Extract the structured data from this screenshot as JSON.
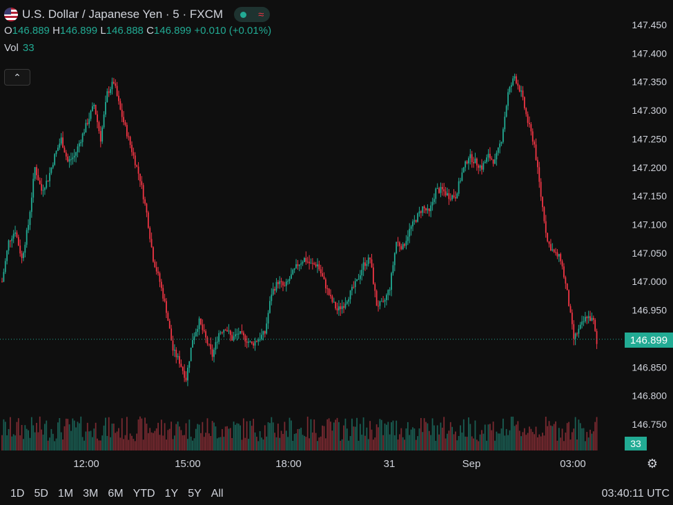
{
  "header": {
    "title": "U.S. Dollar / Japanese Yen · 5 · FXCM",
    "ohlc": {
      "o_label": "O",
      "o_value": "146.889",
      "h_label": "H",
      "h_value": "146.899",
      "l_label": "L",
      "l_value": "146.888",
      "c_label": "C",
      "c_value": "146.899",
      "change": "+0.010 (+0.01%)"
    },
    "vol_label": "Vol",
    "vol_value": "33",
    "collapse_icon": "chevron-up-icon"
  },
  "price_axis": {
    "labels": [
      "147.450",
      "147.400",
      "147.350",
      "147.300",
      "147.250",
      "147.200",
      "147.150",
      "147.100",
      "147.050",
      "147.000",
      "146.950",
      "146.899",
      "146.850",
      "146.800",
      "146.750"
    ],
    "current_price": "146.899",
    "current_volume": "33"
  },
  "time_axis": {
    "labels": [
      "12:00",
      "15:00",
      "18:00",
      "31",
      "Sep",
      "03:00"
    ]
  },
  "range_buttons": [
    "1D",
    "5D",
    "1M",
    "3M",
    "6M",
    "YTD",
    "1Y",
    "5Y",
    "All"
  ],
  "clock": "03:40:11 UTC",
  "colors": {
    "background": "#0f0f0f",
    "up": "#22ab94",
    "down": "#f23645",
    "text": "#d1d4dc"
  },
  "chart_data": {
    "type": "candlestick",
    "symbol": "USDJPY",
    "interval": "5",
    "ylim": [
      146.72,
      147.47
    ],
    "x_ticks": [
      "12:00",
      "15:00",
      "18:00",
      "31",
      "Sep",
      "03:00"
    ],
    "close_path": [
      {
        "i": 0,
        "v": 147.0
      },
      {
        "i": 4,
        "v": 147.07
      },
      {
        "i": 8,
        "v": 147.09
      },
      {
        "i": 12,
        "v": 147.04
      },
      {
        "i": 16,
        "v": 147.1
      },
      {
        "i": 20,
        "v": 147.2
      },
      {
        "i": 24,
        "v": 147.16
      },
      {
        "i": 28,
        "v": 147.18
      },
      {
        "i": 32,
        "v": 147.22
      },
      {
        "i": 36,
        "v": 147.25
      },
      {
        "i": 40,
        "v": 147.21
      },
      {
        "i": 44,
        "v": 147.22
      },
      {
        "i": 48,
        "v": 147.25
      },
      {
        "i": 52,
        "v": 147.28
      },
      {
        "i": 56,
        "v": 147.31
      },
      {
        "i": 60,
        "v": 147.25
      },
      {
        "i": 64,
        "v": 147.33
      },
      {
        "i": 68,
        "v": 147.35
      },
      {
        "i": 72,
        "v": 147.3
      },
      {
        "i": 76,
        "v": 147.26
      },
      {
        "i": 80,
        "v": 147.22
      },
      {
        "i": 84,
        "v": 147.18
      },
      {
        "i": 88,
        "v": 147.12
      },
      {
        "i": 92,
        "v": 147.04
      },
      {
        "i": 96,
        "v": 147.0
      },
      {
        "i": 100,
        "v": 146.95
      },
      {
        "i": 104,
        "v": 146.88
      },
      {
        "i": 108,
        "v": 146.86
      },
      {
        "i": 112,
        "v": 146.83
      },
      {
        "i": 116,
        "v": 146.9
      },
      {
        "i": 120,
        "v": 146.93
      },
      {
        "i": 124,
        "v": 146.9
      },
      {
        "i": 128,
        "v": 146.87
      },
      {
        "i": 132,
        "v": 146.91
      },
      {
        "i": 136,
        "v": 146.92
      },
      {
        "i": 140,
        "v": 146.9
      },
      {
        "i": 144,
        "v": 146.91
      },
      {
        "i": 148,
        "v": 146.9
      },
      {
        "i": 152,
        "v": 146.89
      },
      {
        "i": 156,
        "v": 146.9
      },
      {
        "i": 160,
        "v": 146.91
      },
      {
        "i": 164,
        "v": 146.98
      },
      {
        "i": 168,
        "v": 147.0
      },
      {
        "i": 172,
        "v": 146.99
      },
      {
        "i": 176,
        "v": 147.01
      },
      {
        "i": 180,
        "v": 147.03
      },
      {
        "i": 184,
        "v": 147.04
      },
      {
        "i": 188,
        "v": 147.03
      },
      {
        "i": 192,
        "v": 147.03
      },
      {
        "i": 196,
        "v": 147.0
      },
      {
        "i": 200,
        "v": 146.97
      },
      {
        "i": 204,
        "v": 146.95
      },
      {
        "i": 208,
        "v": 146.96
      },
      {
        "i": 212,
        "v": 146.98
      },
      {
        "i": 216,
        "v": 147.0
      },
      {
        "i": 220,
        "v": 147.03
      },
      {
        "i": 224,
        "v": 147.04
      },
      {
        "i": 228,
        "v": 146.96
      },
      {
        "i": 232,
        "v": 146.96
      },
      {
        "i": 236,
        "v": 146.99
      },
      {
        "i": 240,
        "v": 147.07
      },
      {
        "i": 244,
        "v": 147.06
      },
      {
        "i": 248,
        "v": 147.09
      },
      {
        "i": 252,
        "v": 147.11
      },
      {
        "i": 256,
        "v": 147.13
      },
      {
        "i": 260,
        "v": 147.12
      },
      {
        "i": 264,
        "v": 147.16
      },
      {
        "i": 268,
        "v": 147.16
      },
      {
        "i": 272,
        "v": 147.15
      },
      {
        "i": 276,
        "v": 147.15
      },
      {
        "i": 280,
        "v": 147.19
      },
      {
        "i": 284,
        "v": 147.22
      },
      {
        "i": 288,
        "v": 147.21
      },
      {
        "i": 292,
        "v": 147.2
      },
      {
        "i": 296,
        "v": 147.22
      },
      {
        "i": 300,
        "v": 147.21
      },
      {
        "i": 304,
        "v": 147.25
      },
      {
        "i": 308,
        "v": 147.33
      },
      {
        "i": 312,
        "v": 147.36
      },
      {
        "i": 316,
        "v": 147.33
      },
      {
        "i": 320,
        "v": 147.28
      },
      {
        "i": 324,
        "v": 147.24
      },
      {
        "i": 328,
        "v": 147.15
      },
      {
        "i": 332,
        "v": 147.07
      },
      {
        "i": 336,
        "v": 147.05
      },
      {
        "i": 340,
        "v": 147.04
      },
      {
        "i": 344,
        "v": 146.98
      },
      {
        "i": 348,
        "v": 146.9
      },
      {
        "i": 352,
        "v": 146.92
      },
      {
        "i": 356,
        "v": 146.94
      },
      {
        "i": 360,
        "v": 146.93
      },
      {
        "i": 362,
        "v": 146.89
      }
    ],
    "volume_range": [
      0,
      110
    ]
  }
}
